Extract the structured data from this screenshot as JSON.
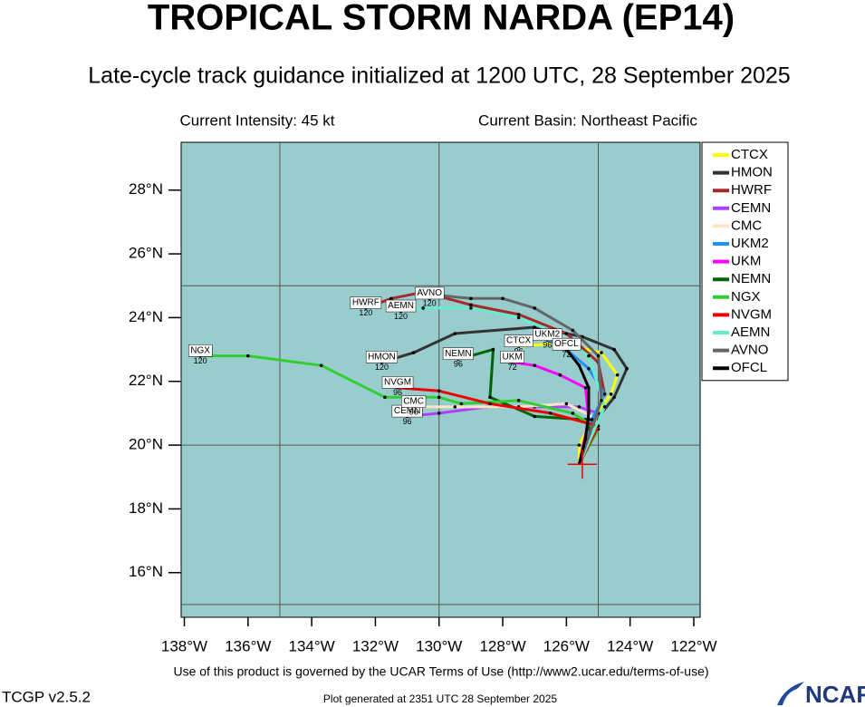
{
  "chart_data": {
    "type": "line",
    "title": "TROPICAL STORM NARDA (EP14)",
    "subtitle": "Late-cycle track guidance initialized at 1200 UTC, 28 September 2025",
    "intensity_text": "Current Intensity: 45 kt",
    "basin_text": "Current Basin: Northeast Pacific",
    "terms_text": "Use of this product is governed by the UCAR Terms of Use (http://www2.ucar.edu/terms-of-use)",
    "version_text": "TCGP v2.5.2",
    "generated_text": "Plot generated at 2351 UTC   28 September 2025",
    "logo_text": "NCAR",
    "xlim": [
      -138.1,
      -121.8
    ],
    "ylim": [
      14.6,
      29.5
    ],
    "xticks": [
      {
        "value": -138,
        "label": "138°W"
      },
      {
        "value": -136,
        "label": "136°W"
      },
      {
        "value": -134,
        "label": "134°W"
      },
      {
        "value": -132,
        "label": "132°W"
      },
      {
        "value": -130,
        "label": "130°W"
      },
      {
        "value": -128,
        "label": "128°W"
      },
      {
        "value": -126,
        "label": "126°W"
      },
      {
        "value": -124,
        "label": "124°W"
      },
      {
        "value": -122,
        "label": "122°W"
      }
    ],
    "yticks": [
      {
        "value": 16,
        "label": "16°N"
      },
      {
        "value": 18,
        "label": "18°N"
      },
      {
        "value": 20,
        "label": "20°N"
      },
      {
        "value": 22,
        "label": "22°N"
      },
      {
        "value": 24,
        "label": "24°N"
      },
      {
        "value": 26,
        "label": "26°N"
      },
      {
        "value": 28,
        "label": "28°N"
      }
    ],
    "grid_x": [
      -135,
      -130,
      -125
    ],
    "grid_y": [
      15,
      20,
      25
    ],
    "background": "#99cccc",
    "current_position": {
      "x": -125.5,
      "y": 19.4,
      "color": "#ee0000"
    },
    "series": [
      {
        "name": "CTCX",
        "color": "#ffff00",
        "end_hour": 96,
        "x": [
          -125.6,
          -125.6,
          -125.2,
          -124.6,
          -124.4,
          -124.9,
          -126.2,
          -127.5
        ],
        "y": [
          19.4,
          20.0,
          20.8,
          21.6,
          22.2,
          22.9,
          23.2,
          23.1
        ]
      },
      {
        "name": "HMON",
        "color": "#333333",
        "end_hour": 120,
        "x": [
          -125.6,
          -125.3,
          -124.5,
          -124.1,
          -124.5,
          -125.5,
          -127.0,
          -129.5,
          -130.8,
          -131.8
        ],
        "y": [
          19.4,
          20.5,
          21.5,
          22.4,
          23.0,
          23.4,
          23.7,
          23.5,
          22.9,
          22.6
        ]
      },
      {
        "name": "HWRF",
        "color": "#a52a2a",
        "end_hour": 120,
        "x": [
          -125.6,
          -125.3,
          -124.8,
          -125.0,
          -126.0,
          -127.5,
          -129.0,
          -130.5,
          -131.5,
          -132.3
        ],
        "y": [
          19.4,
          20.5,
          21.6,
          22.6,
          23.5,
          24.1,
          24.4,
          24.8,
          24.6,
          24.3
        ]
      },
      {
        "name": "CEMN",
        "color": "#b040ff",
        "end_hour": 96,
        "x": [
          -125.6,
          -125.4,
          -125.0,
          -125.6,
          -127.0,
          -128.5,
          -130.0,
          -131.0
        ],
        "y": [
          19.4,
          20.2,
          21.0,
          21.2,
          21.2,
          21.2,
          21.0,
          20.9
        ]
      },
      {
        "name": "CMC",
        "color": "#ffe4c4",
        "end_hour": 96,
        "x": [
          -125.6,
          -125.0,
          -126.0,
          -127.5,
          -129.5,
          -130.8
        ],
        "y": [
          19.4,
          20.8,
          21.3,
          21.2,
          21.2,
          21.2
        ]
      },
      {
        "name": "UKM2",
        "color": "#1e90ff",
        "end_hour": 96,
        "x": [
          -125.6,
          -125.2,
          -124.8,
          -125.3,
          -126.0,
          -126.6
        ],
        "y": [
          19.4,
          20.8,
          21.6,
          22.4,
          23.0,
          23.3
        ]
      },
      {
        "name": "UKM",
        "color": "#ff00ff",
        "end_hour": 72,
        "x": [
          -125.6,
          -125.3,
          -125.4,
          -126.2,
          -127.0,
          -127.7
        ],
        "y": [
          19.4,
          20.8,
          21.8,
          22.2,
          22.5,
          22.6
        ]
      },
      {
        "name": "NEMN",
        "color": "#006400",
        "end_hour": 96,
        "x": [
          -125.6,
          -125.2,
          -125.4,
          -127.0,
          -128.4,
          -128.3,
          -129.0,
          -129.4
        ],
        "y": [
          19.4,
          20.3,
          20.8,
          20.9,
          21.5,
          23.0,
          22.8,
          22.7
        ]
      },
      {
        "name": "NGX",
        "color": "#32cd32",
        "end_hour": 120,
        "x": [
          -125.6,
          -125.0,
          -125.8,
          -127.5,
          -129.3,
          -130.0,
          -131.7,
          -133.7,
          -136.0,
          -137.5
        ],
        "y": [
          19.4,
          20.5,
          21.0,
          21.4,
          21.3,
          21.5,
          21.5,
          22.5,
          22.8,
          22.8
        ]
      },
      {
        "name": "NVGM",
        "color": "#ee0000",
        "end_hour": 96,
        "x": [
          -125.6,
          -125.0,
          -126.5,
          -128.4,
          -130.0,
          -131.3
        ],
        "y": [
          19.4,
          20.6,
          21.0,
          21.3,
          21.7,
          21.8
        ]
      },
      {
        "name": "AEMN",
        "color": "#66eecc",
        "end_hour": 120,
        "x": [
          -125.6,
          -124.8,
          -125.3,
          -126.3,
          -127.5,
          -129.0,
          -130.5,
          -131.2
        ],
        "y": [
          19.4,
          21.2,
          22.8,
          23.5,
          24.0,
          24.3,
          24.3,
          24.2
        ]
      },
      {
        "name": "AVNO",
        "color": "#666666",
        "end_hour": 120,
        "x": [
          -125.6,
          -124.9,
          -125.0,
          -125.8,
          -127.0,
          -128.0,
          -129.0,
          -130.0,
          -130.3
        ],
        "y": [
          19.4,
          21.4,
          22.8,
          23.6,
          24.3,
          24.6,
          24.6,
          24.7,
          24.6
        ]
      },
      {
        "name": "OFCL",
        "color": "#000000",
        "end_hour": 72,
        "x": [
          -125.6,
          -125.4,
          -125.3,
          -125.3,
          -125.6,
          -126.0
        ],
        "y": [
          19.4,
          20.2,
          21.0,
          21.8,
          22.5,
          23.0
        ]
      }
    ]
  }
}
